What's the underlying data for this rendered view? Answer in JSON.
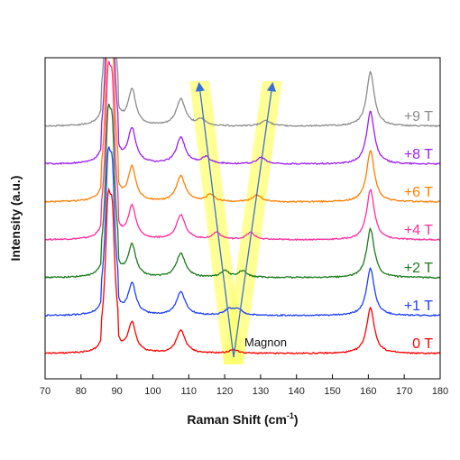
{
  "chart_data": {
    "type": "line",
    "xlabel": "Raman Shift (cm",
    "xlabel_sup": "-1",
    "xlabel_end": ")",
    "ylabel": "Intensity (a.u.)",
    "xlim": [
      70,
      180
    ],
    "xticks": [
      70,
      80,
      90,
      100,
      110,
      120,
      130,
      140,
      150,
      160,
      170,
      180
    ],
    "stacked": true,
    "grid": false,
    "fixed_peaks": [
      {
        "x": 87.5,
        "width": 0.9,
        "height": 1.0
      },
      {
        "x": 88.7,
        "width": 0.9,
        "height": 0.9
      },
      {
        "x": 94.2,
        "width": 1.3,
        "height": 0.55
      },
      {
        "x": 107.8,
        "width": 1.5,
        "height": 0.42
      },
      {
        "x": 160.6,
        "width": 1.3,
        "height": 0.85
      }
    ],
    "series": [
      {
        "label": "0 T",
        "color": "#ff0000",
        "magnon_low": 122.5,
        "magnon_high": 122.5,
        "magnon_height": 0.07
      },
      {
        "label": "+1 T",
        "color": "#1f3fff",
        "magnon_low": 121.2,
        "magnon_high": 123.8,
        "magnon_height": 0.11
      },
      {
        "label": "+2 T",
        "color": "#1a7a1a",
        "magnon_low": 120.0,
        "magnon_high": 125.0,
        "magnon_height": 0.12
      },
      {
        "label": "+4 T",
        "color": "#ff2e9e",
        "magnon_low": 117.8,
        "magnon_high": 127.2,
        "magnon_height": 0.13
      },
      {
        "label": "+6 T",
        "color": "#ff7f00",
        "magnon_low": 116.0,
        "magnon_high": 129.0,
        "magnon_height": 0.13
      },
      {
        "label": "+8 T",
        "color": "#9b1ff0",
        "magnon_low": 114.8,
        "magnon_high": 130.2,
        "magnon_height": 0.12
      },
      {
        "label": "+9 T",
        "color": "#8c8c8c",
        "magnon_low": 113.5,
        "magnon_high": 131.5,
        "magnon_height": 0.11
      }
    ],
    "annotations": [
      {
        "text": "Magnon",
        "x": 125.0,
        "series_index": 0
      }
    ],
    "arrows": [
      {
        "from_x": 122.5,
        "to_x": 113.0
      },
      {
        "from_x": 122.5,
        "to_x": 133.2
      }
    ],
    "highlight_color": "#ffff66"
  }
}
